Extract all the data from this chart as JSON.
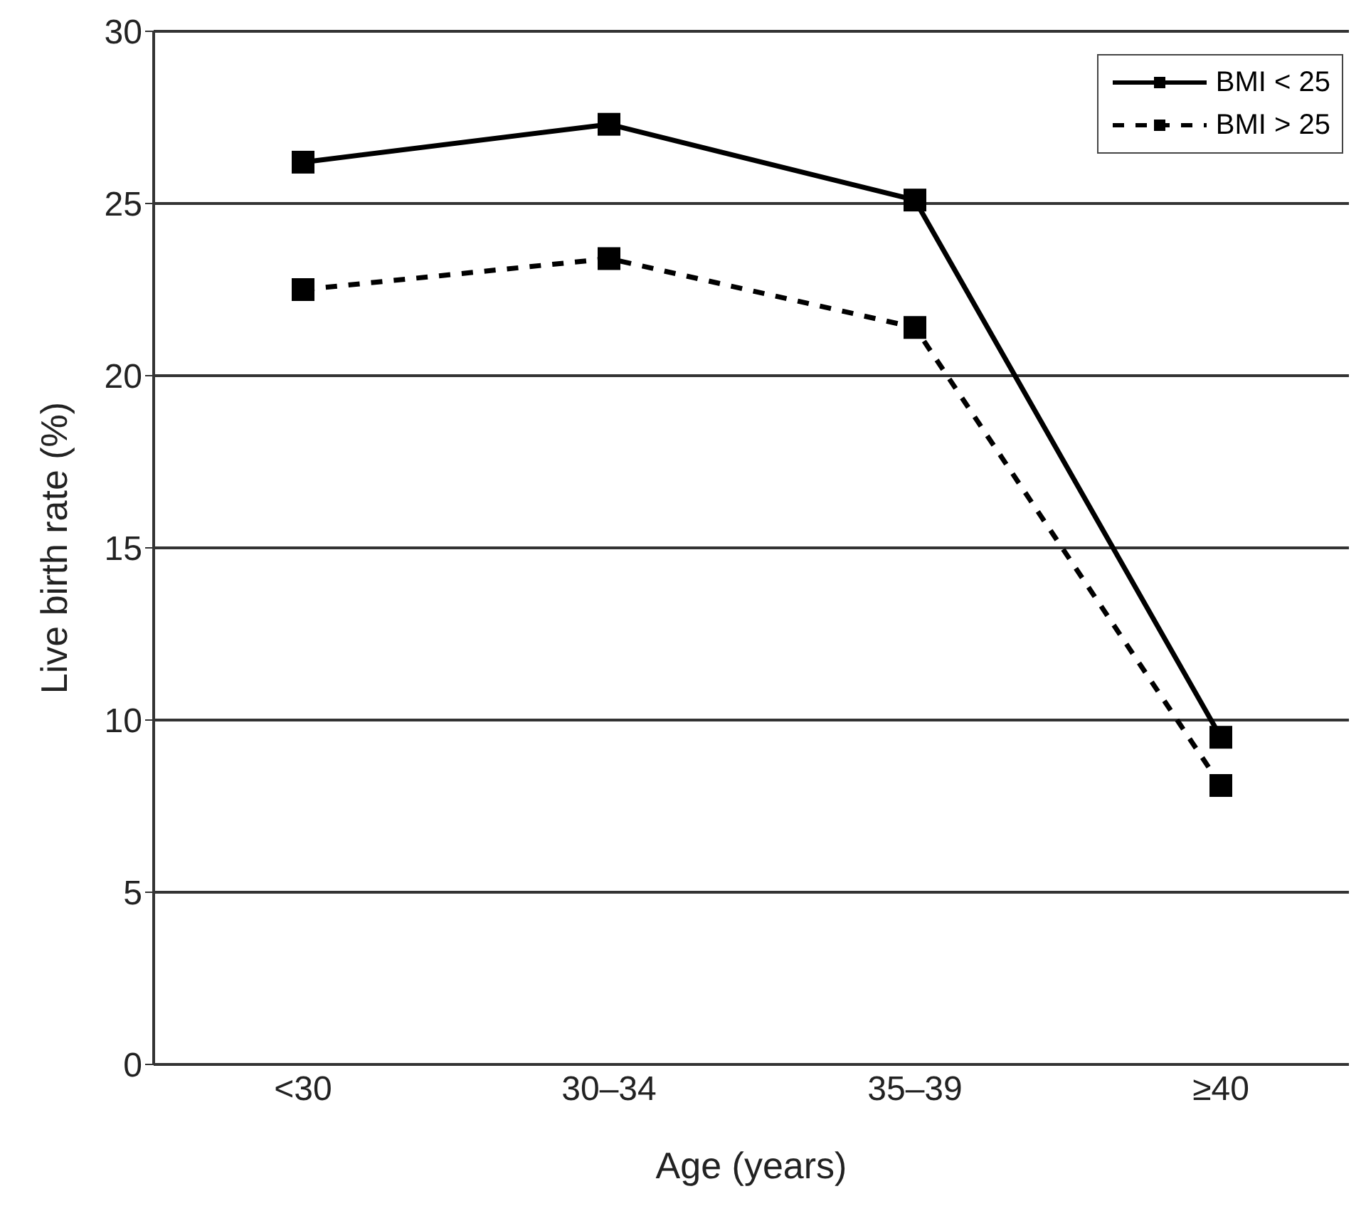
{
  "chart_data": {
    "type": "line",
    "xlabel": "Age (years)",
    "ylabel": "Live birth rate (%)",
    "categories": [
      "<30",
      "30–34",
      "35–39",
      "≥40"
    ],
    "series": [
      {
        "name": "BMI < 25",
        "color": "#000000",
        "line_style": "solid",
        "values": [
          26.2,
          27.3,
          25.1,
          9.5
        ]
      },
      {
        "name": "BMI > 25",
        "color": "#000000",
        "line_style": "dashed",
        "values": [
          22.5,
          23.4,
          21.4,
          8.1
        ]
      }
    ],
    "ylim": [
      0,
      30
    ],
    "yticks": [
      0,
      5,
      10,
      15,
      20,
      25,
      30
    ],
    "grid": "y",
    "legend": "top right",
    "marker": "square"
  }
}
